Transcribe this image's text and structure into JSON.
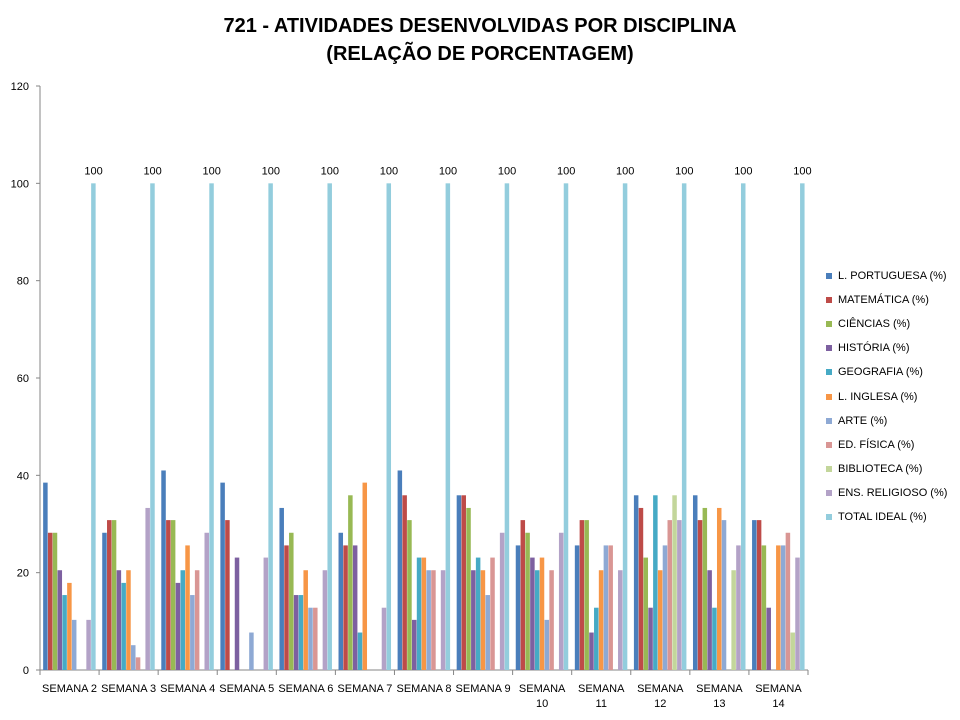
{
  "chart_data": {
    "type": "bar",
    "title_line1": "721 - ATIVIDADES DESENVOLVIDAS POR DISCIPLINA",
    "title_line2": "(RELAÇÃO DE PORCENTAGEM)",
    "xlabel": "",
    "ylabel": "",
    "ylim": [
      0,
      120
    ],
    "yticks": [
      "0",
      "20",
      "40",
      "60",
      "80",
      "100",
      "120"
    ],
    "grid": false,
    "legend_position": "right",
    "categories": [
      [
        "SEMANA 2"
      ],
      [
        "SEMANA 3"
      ],
      [
        "SEMANA 4"
      ],
      [
        "SEMANA 5"
      ],
      [
        "SEMANA 6"
      ],
      [
        "SEMANA 7"
      ],
      [
        "SEMANA 8"
      ],
      [
        "SEMANA 9"
      ],
      [
        "SEMANA",
        "10"
      ],
      [
        "SEMANA",
        "11"
      ],
      [
        "SEMANA",
        "12"
      ],
      [
        "SEMANA",
        "13"
      ],
      [
        "SEMANA",
        "14"
      ]
    ],
    "series": [
      {
        "name": "L. PORTUGUESA (%)",
        "color": "#4A7EBB",
        "values": [
          38.5,
          28.2,
          41.0,
          38.5,
          33.3,
          28.2,
          41.0,
          35.9,
          25.6,
          25.6,
          35.9,
          35.9,
          30.8
        ]
      },
      {
        "name": "MATEMÁTICA (%)",
        "color": "#BE4B48",
        "values": [
          28.2,
          30.8,
          30.8,
          30.8,
          25.6,
          25.6,
          35.9,
          35.9,
          30.8,
          30.8,
          33.3,
          30.8,
          30.8
        ]
      },
      {
        "name": "CIÊNCIAS (%)",
        "color": "#98B954",
        "values": [
          28.2,
          30.8,
          30.8,
          0,
          28.2,
          35.9,
          30.8,
          33.3,
          28.2,
          30.8,
          23.1,
          33.3,
          25.6
        ]
      },
      {
        "name": "HISTÓRIA (%)",
        "color": "#7D60A0",
        "values": [
          20.5,
          20.5,
          17.9,
          23.1,
          15.4,
          25.6,
          10.3,
          20.5,
          23.1,
          7.7,
          12.8,
          20.5,
          12.8
        ]
      },
      {
        "name": "GEOGRAFIA (%)",
        "color": "#46AAC5",
        "values": [
          15.4,
          17.9,
          20.5,
          0,
          15.4,
          7.7,
          23.1,
          23.1,
          20.5,
          12.8,
          35.9,
          12.8,
          0
        ]
      },
      {
        "name": "L. INGLESA (%)",
        "color": "#F79646",
        "values": [
          17.9,
          20.5,
          25.6,
          0,
          20.5,
          38.5,
          23.1,
          20.5,
          23.1,
          20.5,
          20.5,
          33.3,
          25.6
        ]
      },
      {
        "name": "ARTE (%)",
        "color": "#8EA9D4",
        "values": [
          10.3,
          5.1,
          15.4,
          7.7,
          12.8,
          0,
          20.5,
          15.4,
          10.3,
          25.6,
          25.6,
          30.8,
          25.6
        ]
      },
      {
        "name": "ED. FÍSICA (%)",
        "color": "#D99694",
        "values": [
          0,
          2.6,
          20.5,
          0,
          12.8,
          0,
          20.5,
          23.1,
          20.5,
          25.6,
          30.8,
          0,
          28.2
        ]
      },
      {
        "name": "BIBLIOTECA (%)",
        "color": "#C3D69B",
        "values": [
          0,
          0,
          0,
          0,
          0,
          0,
          0,
          0,
          0,
          0,
          35.9,
          20.5,
          7.7
        ]
      },
      {
        "name": "ENS. RELIGIOSO (%)",
        "color": "#B3A2C7",
        "values": [
          10.3,
          33.3,
          28.2,
          23.1,
          20.5,
          12.8,
          20.5,
          28.2,
          28.2,
          20.5,
          30.8,
          25.6,
          23.1
        ]
      },
      {
        "name": "TOTAL IDEAL (%)",
        "color": "#93CDDD",
        "values": [
          100,
          100,
          100,
          100,
          100,
          100,
          100,
          100,
          100,
          100,
          100,
          100,
          100
        ],
        "labels": [
          "100",
          "100",
          "100",
          "100",
          "100",
          "100",
          "100",
          "100",
          "100",
          "100",
          "100",
          "100",
          "100"
        ]
      }
    ]
  }
}
